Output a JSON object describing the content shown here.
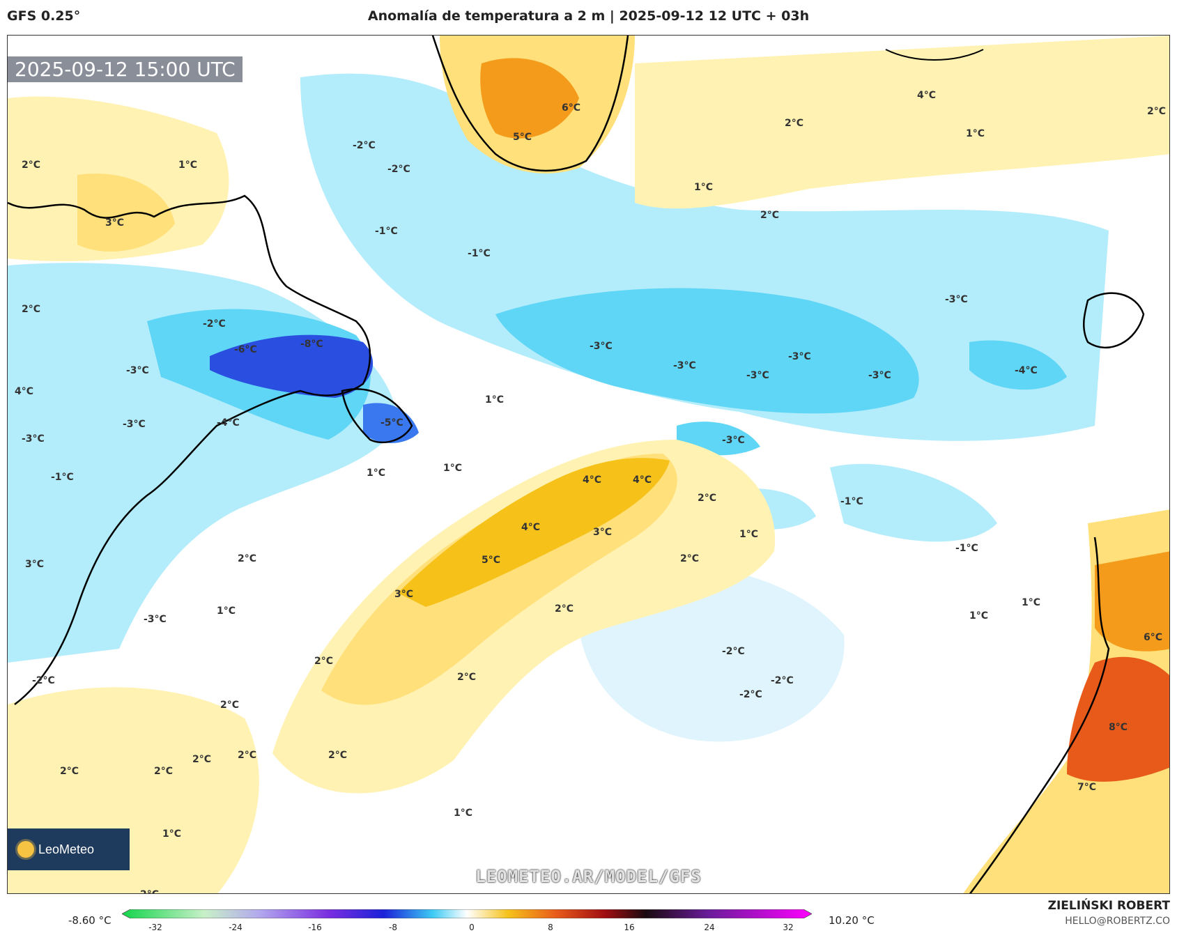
{
  "header": {
    "model": "GFS 0.25°",
    "title": "Anomalía de temperatura a 2 m | 2025-09-12 12 UTC + 03h"
  },
  "map": {
    "timestamp": "2025-09-12 15:00 UTC",
    "watermark": "LEOMETEO.AR/MODEL/GFS",
    "logo": {
      "text": "LeoMeteo"
    },
    "palette": {
      "cold_strong": "#2a4fe0",
      "cold_mid": "#5fd6f6",
      "cold_light": "#b3ecfb",
      "cold_faint": "#dff4fc",
      "neutral": "#ffffff",
      "warm_faint": "#fff2b3",
      "warm_light": "#ffe07a",
      "warm_mid": "#f6c21a",
      "warm_strong": "#f59b1b",
      "hot": "#e85a1a",
      "land_line": "#000000"
    },
    "labels": [
      "-8°C",
      "-6°C",
      "-5°C",
      "-4°C",
      "-3°C",
      "-2°C",
      "-1°C",
      "1°C",
      "2°C",
      "3°C",
      "4°C",
      "5°C",
      "6°C",
      "7°C",
      "8°C"
    ]
  },
  "legend": {
    "min_value": "-8.60 °C",
    "max_value": "10.20 °C",
    "ticks": [
      "-32",
      "-24",
      "-16",
      "-8",
      "0",
      "8",
      "16",
      "24",
      "32"
    ]
  },
  "footer": {
    "author": "ZIELIŃSKI ROBERT",
    "email": "HELLO@ROBERTZ.CO"
  }
}
